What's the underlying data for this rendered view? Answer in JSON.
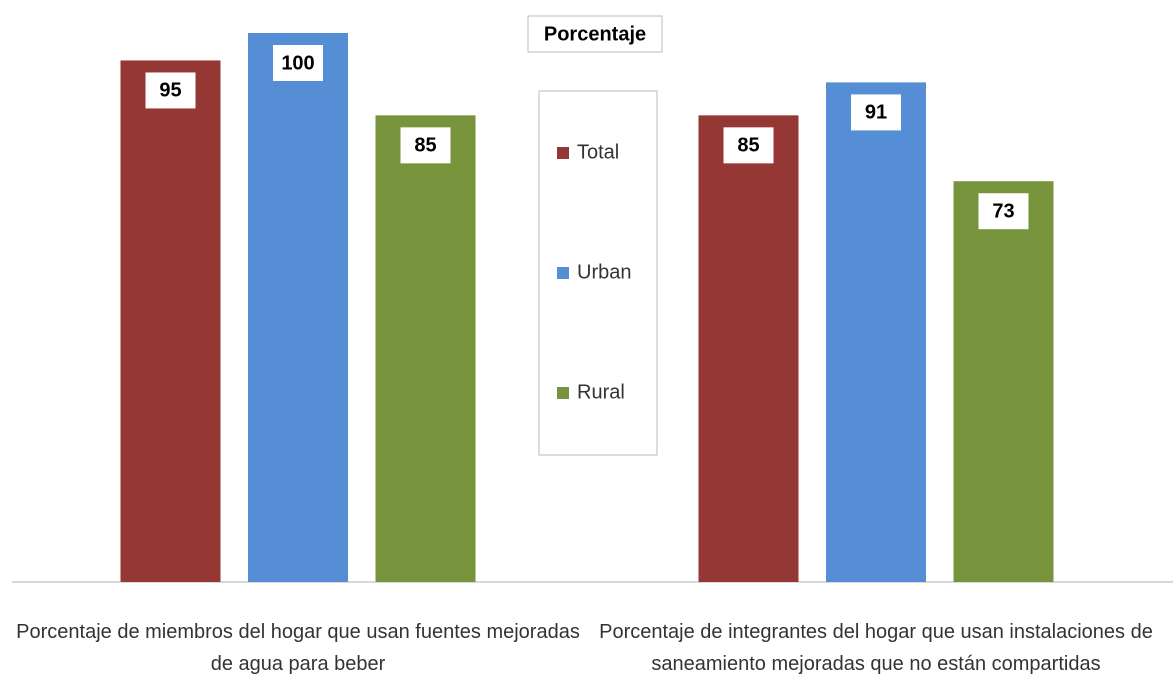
{
  "chart_data": {
    "type": "bar",
    "title": "Porcentaje",
    "categories": [
      "Porcentaje de miembros del hogar que usan fuentes mejoradas de agua para beber",
      "Porcentaje de integrantes del hogar que usan instalaciones de saneamiento mejoradas que no están compartidas"
    ],
    "series": [
      {
        "name": "Total",
        "color": "#953735",
        "values": [
          95,
          85
        ]
      },
      {
        "name": "Urban",
        "color": "#558ed5",
        "values": [
          100,
          91
        ]
      },
      {
        "name": "Rural",
        "color": "#77933c",
        "values": [
          85,
          73
        ]
      }
    ],
    "ylim": [
      0,
      100
    ],
    "legend": "center"
  }
}
